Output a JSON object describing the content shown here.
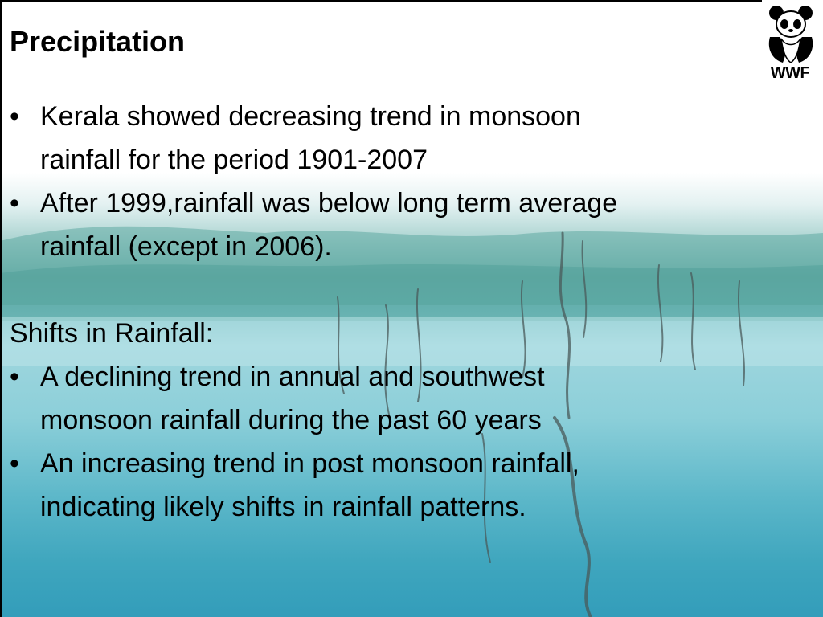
{
  "slide": {
    "title": "Precipitation",
    "bullet_char": "•",
    "section1": {
      "items": [
        {
          "lines": [
            "Kerala showed decreasing trend in monsoon",
            "rainfall for the period 1901-2007"
          ]
        },
        {
          "lines": [
            "After 1999,rainfall was below long term average",
            "rainfall (except in 2006)."
          ]
        }
      ]
    },
    "section2": {
      "heading": "Shifts in Rainfall:",
      "items": [
        {
          "lines": [
            "A declining  trend in annual and southwest",
            "monsoon rainfall during the past 60 years"
          ]
        },
        {
          "lines": [
            "An increasing trend in post monsoon rainfall,",
            "indicating likely shifts in rainfall patterns."
          ]
        }
      ]
    }
  },
  "logo": {
    "text": "WWF",
    "icon": "panda-icon"
  },
  "colors": {
    "text": "#000000",
    "water": "#5cb7c9",
    "hills": "#6fb2ad"
  }
}
